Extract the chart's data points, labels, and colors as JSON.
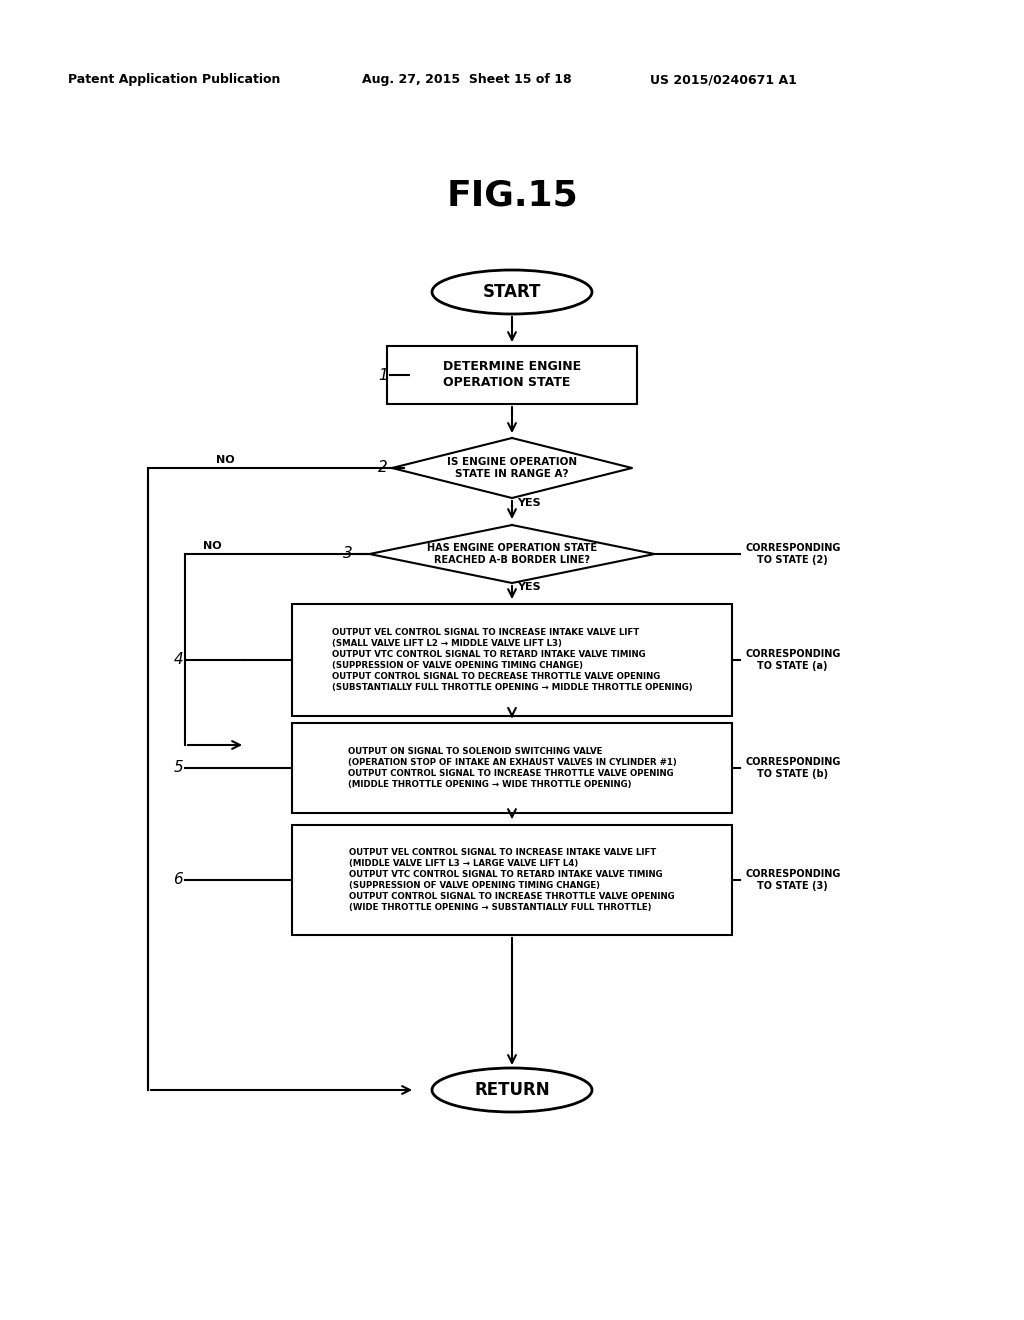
{
  "title": "FIG.15",
  "header_left": "Patent Application Publication",
  "header_mid": "Aug. 27, 2015  Sheet 15 of 18",
  "header_right": "US 2015/0240671 A1",
  "bg_color": "#ffffff",
  "start_label": "START",
  "return_label": "RETURN",
  "step1_label": "DETERMINE ENGINE\nOPERATION STATE",
  "d2_label": "IS ENGINE OPERATION\nSTATE IN RANGE A?",
  "d3_label": "HAS ENGINE OPERATION STATE\nREACHED A-B BORDER LINE?",
  "box4_line1": "OUTPUT VEL CONTROL SIGNAL TO INCREASE INTAKE VALVE LIFT",
  "box4_line2": "(SMALL VALVE LIFT L2 → MIDDLE VALVE LIFT L3)",
  "box4_line3": "OUTPUT VTC CONTROL SIGNAL TO RETARD INTAKE VALVE TIMING",
  "box4_line4": "(SUPPRESSION OF VALVE OPENING TIMING CHANGE)",
  "box4_line5": "OUTPUT CONTROL SIGNAL TO DECREASE THROTTLE VALVE OPENING",
  "box4_line6": "(SUBSTANTIALLY FULL THROTTLE OPENING → MIDDLE THROTTLE OPENING)",
  "box5_line1": "OUTPUT ON SIGNAL TO SOLENOID SWITCHING VALVE",
  "box5_line2": "(OPERATION STOP OF INTAKE AN EXHAUST VALVES IN CYLINDER #1)",
  "box5_line3": "OUTPUT CONTROL SIGNAL TO INCREASE THROTTLE VALVE OPENING",
  "box5_line4": "(MIDDLE THROTTLE OPENING → WIDE THROTTLE OPENING)",
  "box6_line1": "OUTPUT VEL CONTROL SIGNAL TO INCREASE INTAKE VALVE LIFT",
  "box6_line2": "(MIDDLE VALVE LIFT L3 → LARGE VALVE LIFT L4)",
  "box6_line3": "OUTPUT VTC CONTROL SIGNAL TO RETARD INTAKE VALVE TIMING",
  "box6_line4": "(SUPPRESSION OF VALVE OPENING TIMING CHANGE)",
  "box6_line5": "OUTPUT CONTROL SIGNAL TO INCREASE THROTTLE VALVE OPENING",
  "box6_line6": "(WIDE THROTTLE OPENING → SUBSTANTIALLY FULL THROTTLE)",
  "corr2": "CORRESPONDING\nTO STATE (2)",
  "corr_a": "CORRESPONDING\nTO STATE (a)",
  "corr_b": "CORRESPONDING\nTO STATE (b)",
  "corr3": "CORRESPONDING\nTO STATE (3)"
}
